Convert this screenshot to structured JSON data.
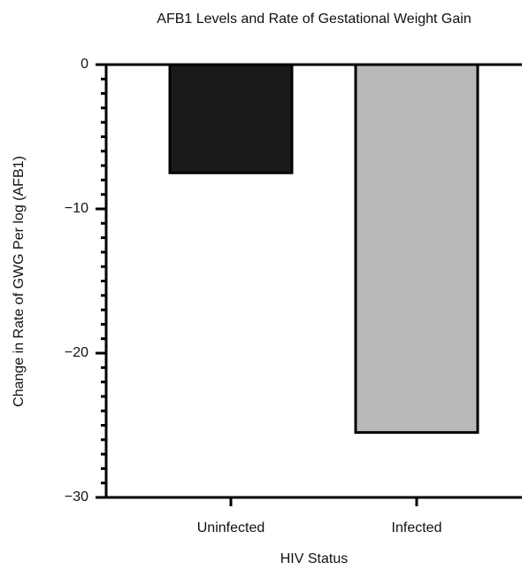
{
  "chart_data": {
    "type": "bar",
    "title": "AFB1 Levels and Rate of Gestational Weight Gain",
    "x_label": "HIV Status",
    "y_label": "Change in Rate of GWG Per log (AFB1)",
    "categories": [
      "Uninfected",
      "Infected"
    ],
    "values": [
      -7.5,
      -25.5
    ],
    "colors": [
      "#1a1a1a",
      "#b9b9b9"
    ],
    "ylim": [
      -30,
      0
    ],
    "yticks": [
      0,
      {
        "value": -10,
        "label": "−10"
      },
      {
        "value": -20,
        "label": "−20"
      },
      {
        "value": -30,
        "label": "−30"
      }
    ],
    "yminorticks": [
      -1,
      -2,
      -3,
      -4,
      -5,
      -6,
      -7,
      -8,
      -9,
      -11,
      -12,
      -13,
      -14,
      -15,
      -16,
      -17,
      -18,
      -19,
      -21,
      -22,
      -23,
      -24,
      -25,
      -26,
      -27,
      -28,
      -29
    ],
    "grid": false
  }
}
